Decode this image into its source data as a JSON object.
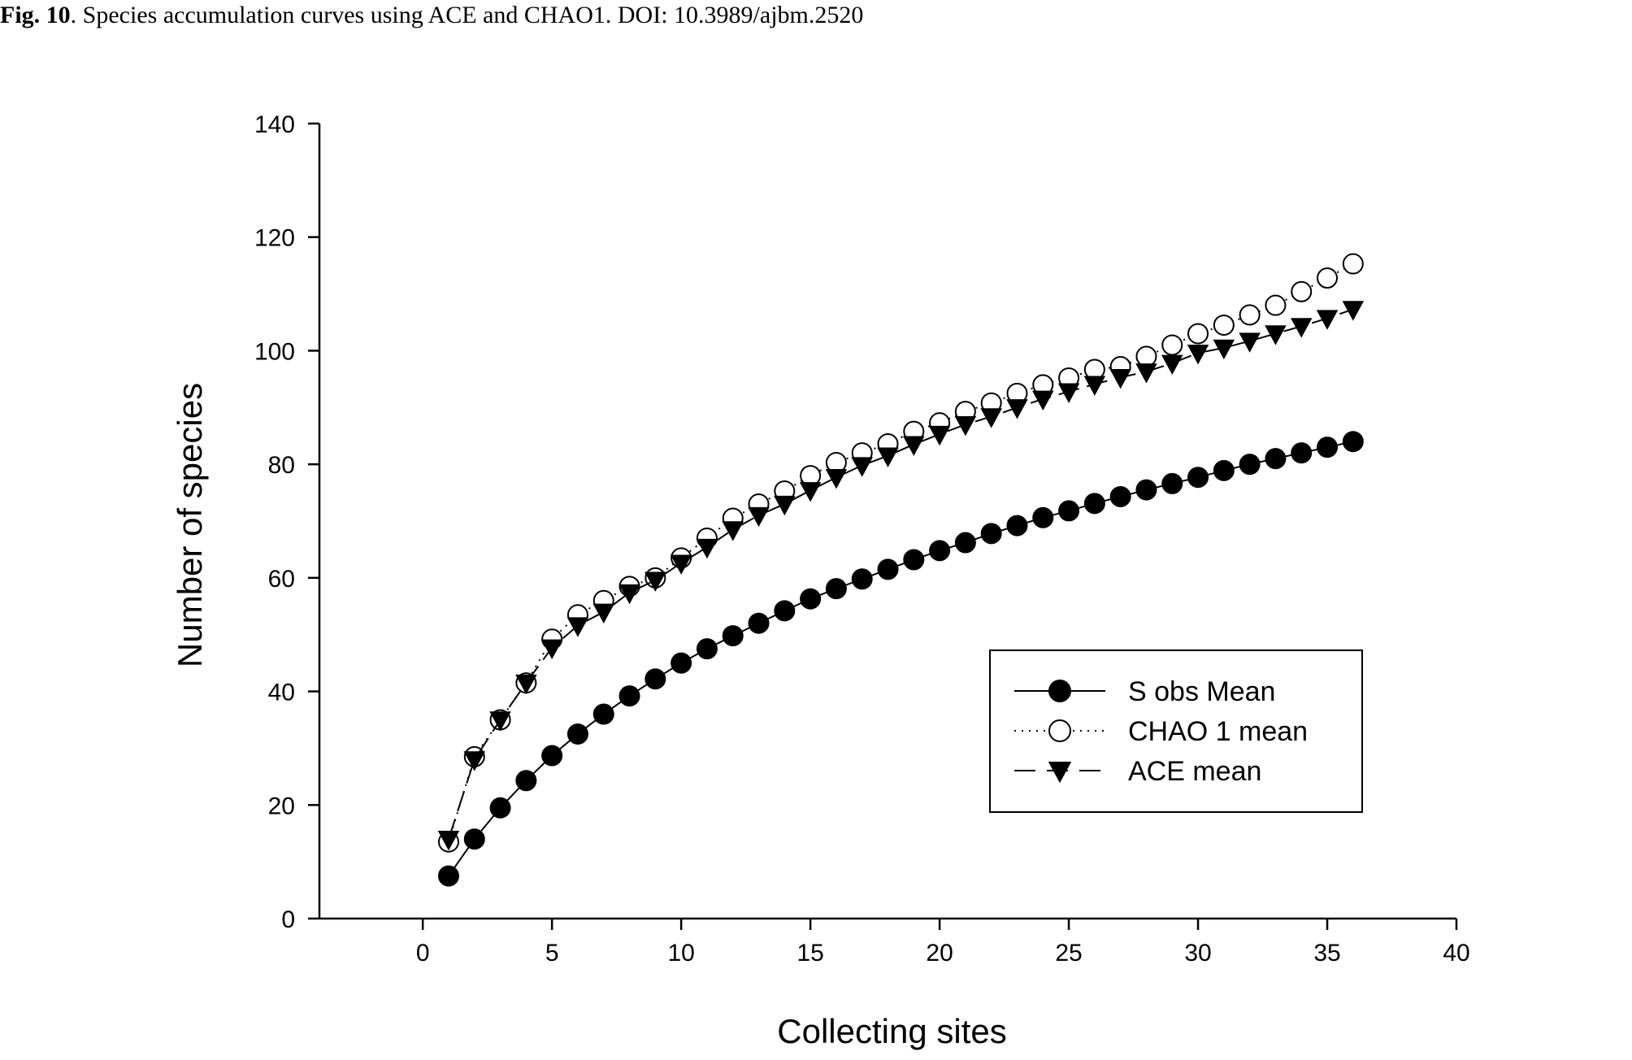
{
  "caption": {
    "label": "Fig. 10",
    "text": ". Species accumulation curves using ACE and CHAO1. DOI: 10.3989/ajbm.2520"
  },
  "chart_data": {
    "type": "line",
    "title": "",
    "xlabel": "Collecting sites",
    "ylabel": "Number of species",
    "xlim": [
      -4,
      40
    ],
    "ylim": [
      0,
      140
    ],
    "xticks": [
      0,
      5,
      10,
      15,
      20,
      25,
      30,
      35,
      40
    ],
    "yticks": [
      0,
      20,
      40,
      60,
      80,
      100,
      120,
      140
    ],
    "grid": false,
    "legend_position": "lower-right",
    "x": [
      1,
      2,
      3,
      4,
      5,
      6,
      7,
      8,
      9,
      10,
      11,
      12,
      13,
      14,
      15,
      16,
      17,
      18,
      19,
      20,
      21,
      22,
      23,
      24,
      25,
      26,
      27,
      28,
      29,
      30,
      31,
      32,
      33,
      34,
      35,
      36
    ],
    "series": [
      {
        "name": "S obs Mean",
        "marker": "filled-circle",
        "line": "solid",
        "values": [
          7.5,
          14,
          19.5,
          24.3,
          28.7,
          32.5,
          36,
          39.2,
          42.2,
          45,
          47.5,
          49.8,
          52,
          54.2,
          56.3,
          58.1,
          59.8,
          61.5,
          63.2,
          64.8,
          66.2,
          67.8,
          69.2,
          70.6,
          71.8,
          73.1,
          74.3,
          75.5,
          76.6,
          77.7,
          78.9,
          80,
          81,
          82,
          83,
          84
        ]
      },
      {
        "name": "CHAO 1 mean",
        "marker": "open-circle",
        "line": "dotted",
        "values": [
          13.5,
          28.5,
          35,
          41.5,
          49.2,
          53.5,
          56,
          58.5,
          60,
          63.5,
          67,
          70.5,
          73,
          75.3,
          78,
          80.3,
          82,
          83.6,
          85.8,
          87.3,
          89.3,
          90.8,
          92.5,
          94,
          95.2,
          96.7,
          97.2,
          99,
          101,
          103,
          104.5,
          106.3,
          108,
          110.4,
          112.8,
          115.3
        ]
      },
      {
        "name": "ACE mean",
        "marker": "filled-triangle-down",
        "line": "dashed",
        "values": [
          14,
          28,
          35,
          41.5,
          47.7,
          51.6,
          54,
          57.4,
          59.6,
          62.6,
          65.4,
          68.5,
          71,
          73,
          75.4,
          77.7,
          79.8,
          81.5,
          83.5,
          85.3,
          87,
          88.4,
          90,
          91.5,
          92.8,
          94.1,
          95.3,
          96.3,
          97.8,
          99.6,
          100.5,
          101.7,
          103,
          104.3,
          105.7,
          107.3
        ]
      }
    ]
  }
}
